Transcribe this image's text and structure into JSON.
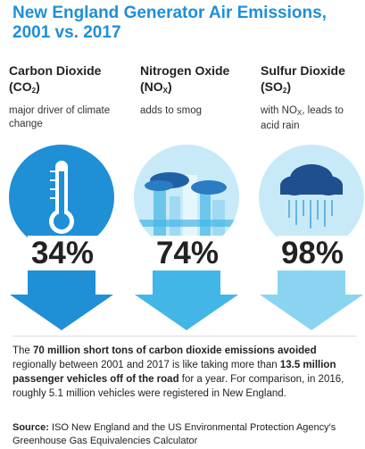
{
  "title": "New England Generator Air Emissions, 2001 vs. 2017",
  "columns": [
    {
      "name_main": "Carbon Dioxide",
      "formula_pre": "(CO",
      "formula_sub": "2",
      "formula_post": ")",
      "desc": "major driver of climate change",
      "percent": "34%",
      "icon": "thermometer-icon",
      "color": "#1f8fd6"
    },
    {
      "name_main": "Nitrogen Oxide",
      "formula_pre": "(NO",
      "formula_sub": "X",
      "formula_post": ")",
      "desc": "adds to smog",
      "percent": "74%",
      "icon": "smog-city-icon",
      "color": "#43b6e8"
    },
    {
      "name_main": "Sulfur Dioxide",
      "formula_pre": "(SO",
      "formula_sub": "2",
      "formula_post": ")",
      "desc_pre": "with NO",
      "desc_sub": "X",
      "desc_post": ", leads to acid rain",
      "percent": "98%",
      "icon": "rain-cloud-icon",
      "color": "#8ad4f1"
    }
  ],
  "footer": {
    "t1": "The ",
    "b1": "70 million short tons of carbon dioxide emissions avoided",
    "t2": " regionally between 2001 and 2017 is like taking more than ",
    "b2": "13.5 million passenger vehicles off of the road",
    "t3": " for a year. For comparison, in 2016, roughly 5.1 million vehicles were registered in New England."
  },
  "source": {
    "label": "Source:",
    "text": " ISO New England and the US Environmental Protection Agency's Greenhouse Gas Equivalencies Calculator"
  }
}
